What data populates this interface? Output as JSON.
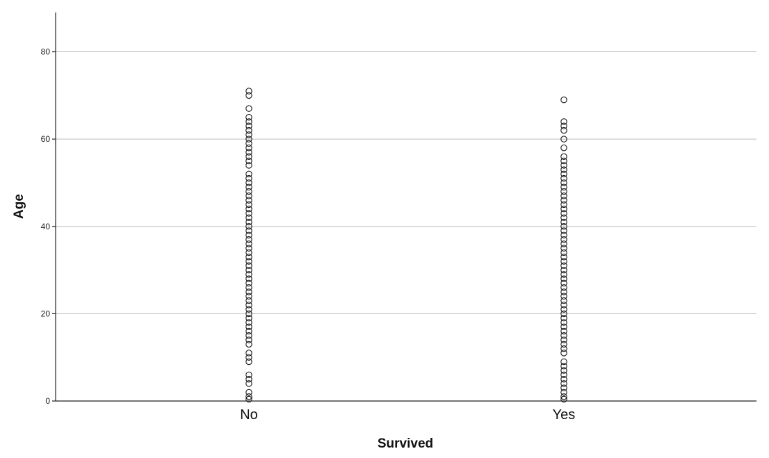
{
  "chart_data": {
    "type": "scatter",
    "title": "",
    "xlabel": "Survived",
    "ylabel": "Age",
    "categories": [
      "No",
      "Yes"
    ],
    "ylim": [
      0,
      89
    ],
    "yticks": [
      0,
      20,
      40,
      60,
      80
    ],
    "grid": "horizontal",
    "marker": "open-circle",
    "series": [
      {
        "category": "No",
        "values": [
          0.42,
          1,
          2,
          4,
          5,
          6,
          9,
          10,
          11,
          13,
          14,
          15,
          16,
          17,
          18,
          19,
          20,
          21,
          22,
          23,
          24,
          25,
          26,
          27,
          28,
          29,
          30,
          31,
          32,
          33,
          34,
          35,
          36,
          37,
          38,
          39,
          40,
          41,
          42,
          43,
          44,
          45,
          46,
          47,
          48,
          49,
          50,
          51,
          52,
          54,
          55,
          56,
          57,
          58,
          59,
          60,
          61,
          62,
          63,
          64,
          65,
          67,
          70,
          71
        ]
      },
      {
        "category": "Yes",
        "values": [
          0.42,
          1,
          2,
          3,
          4,
          5,
          6,
          7,
          8,
          9,
          11,
          12,
          13,
          14,
          15,
          16,
          17,
          18,
          19,
          20,
          21,
          22,
          23,
          24,
          25,
          26,
          27,
          28,
          29,
          30,
          31,
          32,
          33,
          34,
          35,
          36,
          37,
          38,
          39,
          40,
          41,
          42,
          43,
          44,
          45,
          46,
          47,
          48,
          49,
          50,
          51,
          52,
          53,
          54,
          55,
          56,
          58,
          60,
          62,
          63,
          64,
          69
        ]
      }
    ]
  }
}
